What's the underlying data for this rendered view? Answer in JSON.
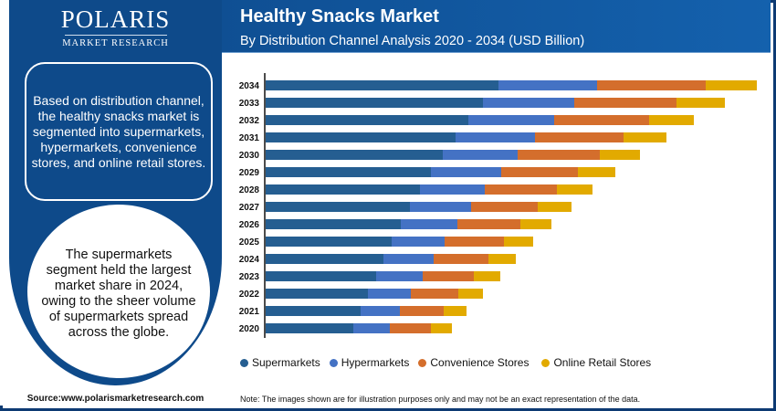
{
  "brand": {
    "name": "POLARIS",
    "sub": "MARKET RESEARCH"
  },
  "header": {
    "title": "Healthy Snacks Market",
    "subtitle": "By Distribution Channel Analysis 2020 - 2034 (USD Billion)"
  },
  "sidebar": {
    "info_text": "Based on distribution channel, the healthy snacks market is segmented into supermarkets, hypermarkets, convenience stores, and online retail stores.",
    "highlight_text": "The supermarkets segment held the largest market share in 2024, owing to the sheer volume of supermarkets spread across the globe.",
    "source": "Source:www.polarismarketresearch.com"
  },
  "footer": {
    "note": "Note: The images shown are for illustration purposes only and may not be an exact representation of the data."
  },
  "colors": {
    "frame": "#0d3a73",
    "panel": "#0e4a8a",
    "supermarkets": "#255e91",
    "hypermarkets": "#4472c4",
    "convenience": "#d46e2c",
    "online": "#e2aa00"
  },
  "chart_data": {
    "type": "bar",
    "orientation": "horizontal",
    "stacked": true,
    "title": "Healthy Snacks Market",
    "subtitle": "By Distribution Channel Analysis 2020 - 2034 (USD Billion)",
    "xlabel": "",
    "ylabel": "",
    "xlim": [
      0,
      540
    ],
    "grid": false,
    "legend_position": "bottom",
    "categories": [
      "2034",
      "2033",
      "2032",
      "2031",
      "2030",
      "2029",
      "2028",
      "2027",
      "2026",
      "2025",
      "2024",
      "2023",
      "2022",
      "2021",
      "2020"
    ],
    "series": [
      {
        "name": "Supermarkets",
        "color": "#255e91",
        "values": [
          255,
          238,
          222,
          208,
          194,
          181,
          169,
          158,
          148,
          138,
          129,
          121,
          112,
          104,
          96
        ]
      },
      {
        "name": "Hypermarkets",
        "color": "#4472c4",
        "values": [
          108,
          100,
          94,
          87,
          82,
          77,
          71,
          67,
          62,
          58,
          55,
          51,
          47,
          43,
          40
        ]
      },
      {
        "name": "Convenience Stores",
        "color": "#d46e2c",
        "values": [
          119,
          112,
          104,
          97,
          90,
          84,
          79,
          73,
          69,
          65,
          60,
          56,
          52,
          48,
          45
        ]
      },
      {
        "name": "Online Retail Stores",
        "color": "#e2aa00",
        "values": [
          56,
          53,
          49,
          47,
          44,
          41,
          39,
          37,
          34,
          32,
          30,
          29,
          27,
          25,
          23
        ]
      }
    ]
  }
}
